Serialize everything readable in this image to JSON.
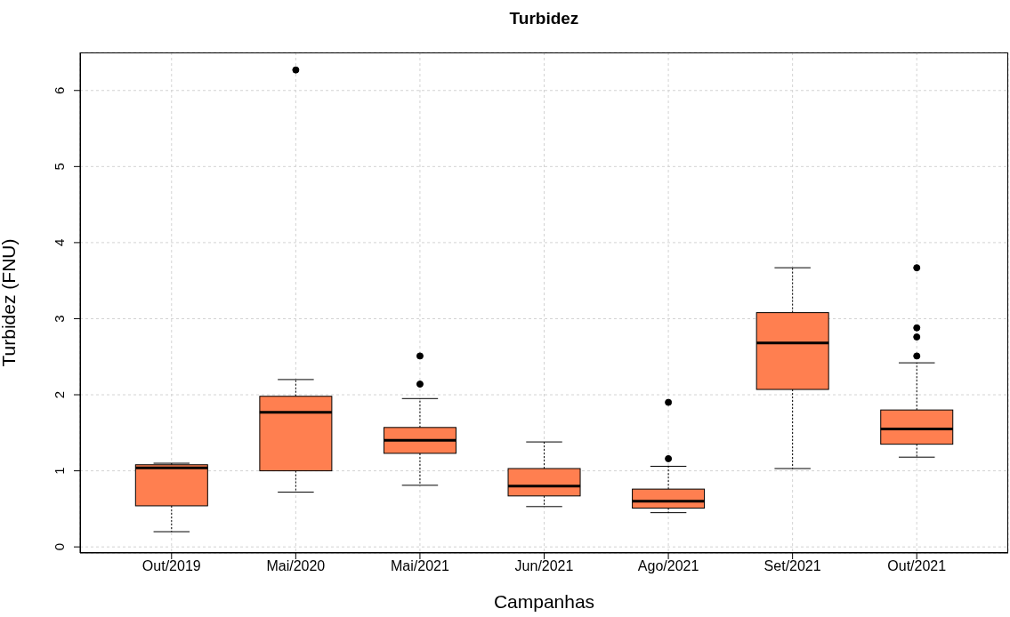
{
  "chart_data": {
    "type": "box",
    "title": "Turbidez",
    "xlabel": "Campanhas",
    "ylabel": "Turbidez (FNU)",
    "categories": [
      "Out/2019",
      "Mai/2020",
      "Mai/2021",
      "Jun/2021",
      "Ago/2021",
      "Set/2021",
      "Out/2021"
    ],
    "color": "#ff7f50",
    "boxes": [
      {
        "low": 0.2,
        "q1": 0.54,
        "median": 1.04,
        "q3": 1.08,
        "high": 1.1
      },
      {
        "low": 0.72,
        "q1": 1.0,
        "median": 1.77,
        "q3": 1.98,
        "high": 2.2,
        "outliers": [
          6.27
        ]
      },
      {
        "low": 0.81,
        "q1": 1.23,
        "median": 1.4,
        "q3": 1.57,
        "high": 1.95,
        "outliers": [
          2.14,
          2.51
        ]
      },
      {
        "low": 0.53,
        "q1": 0.67,
        "median": 0.8,
        "q3": 1.03,
        "high": 1.38
      },
      {
        "low": 0.45,
        "q1": 0.51,
        "median": 0.6,
        "q3": 0.76,
        "high": 1.06,
        "outliers": [
          1.16,
          1.9
        ]
      },
      {
        "low": 1.03,
        "q1": 2.07,
        "median": 2.68,
        "q3": 3.08,
        "high": 3.67
      },
      {
        "low": 1.18,
        "q1": 1.35,
        "median": 1.55,
        "q3": 1.8,
        "high": 2.42,
        "outliers": [
          2.51,
          2.76,
          2.88,
          3.67
        ]
      }
    ],
    "ylim": [
      -0.08,
      6.5
    ],
    "yticks": [
      0,
      1,
      2,
      3,
      4,
      5,
      6
    ],
    "grid": true
  }
}
